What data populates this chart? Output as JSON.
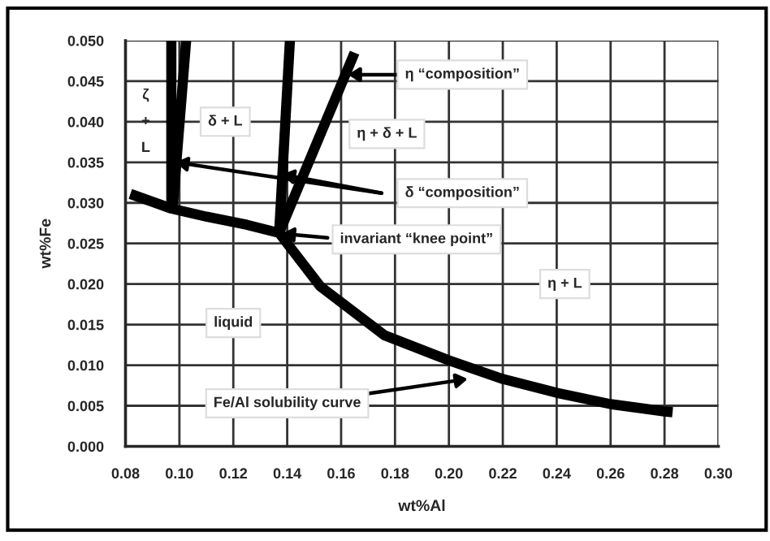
{
  "chart_data": {
    "type": "line",
    "xlabel": "wt%Al",
    "ylabel": "wt%Fe",
    "series": [
      {
        "color": "#000000",
        "x": [
          0.0818,
          0.097,
          0.11,
          0.125,
          0.137,
          0.1523,
          0.176,
          0.2,
          0.22,
          0.24,
          0.26,
          0.28,
          0.283
        ],
        "values": [
          0.0311,
          0.0293,
          0.0283,
          0.0273,
          0.0263,
          0.0197,
          0.0137,
          0.0106,
          0.0083,
          0.0066,
          0.0052,
          0.0043,
          0.0042
        ]
      },
      {
        "color": "#000000",
        "x": [
          0.097,
          0.097
        ],
        "values": [
          0.0293,
          0.05
        ]
      },
      {
        "color": "#000000",
        "x": [
          0.0975,
          0.1025
        ],
        "values": [
          0.0293,
          0.05
        ]
      },
      {
        "color": "#000000",
        "x": [
          0.137,
          0.141
        ],
        "values": [
          0.0263,
          0.05
        ]
      },
      {
        "color": "#000000",
        "x": [
          0.137,
          0.165
        ],
        "values": [
          0.0263,
          0.0485
        ]
      }
    ],
    "xlim": [
      0.08,
      0.3
    ],
    "ylim": [
      0.0,
      0.05
    ],
    "xticks": [
      {
        "value": 0.08,
        "label": "0.08"
      },
      {
        "value": 0.1,
        "label": "0.10"
      },
      {
        "value": 0.12,
        "label": "0.12"
      },
      {
        "value": 0.14,
        "label": "0.14"
      },
      {
        "value": 0.16,
        "label": "0.16"
      },
      {
        "value": 0.18,
        "label": "0.18"
      },
      {
        "value": 0.2,
        "label": "0.20"
      },
      {
        "value": 0.22,
        "label": "0.22"
      },
      {
        "value": 0.24,
        "label": "0.24"
      },
      {
        "value": 0.26,
        "label": "0.26"
      },
      {
        "value": 0.28,
        "label": "0.28"
      },
      {
        "value": 0.3,
        "label": "0.30"
      }
    ],
    "yticks": [
      {
        "value": 0.0,
        "label": "0.000"
      },
      {
        "value": 0.005,
        "label": "0.005"
      },
      {
        "value": 0.01,
        "label": "0.010"
      },
      {
        "value": 0.015,
        "label": "0.015"
      },
      {
        "value": 0.02,
        "label": "0.020"
      },
      {
        "value": 0.025,
        "label": "0.025"
      },
      {
        "value": 0.03,
        "label": "0.030"
      },
      {
        "value": 0.035,
        "label": "0.035"
      },
      {
        "value": 0.04,
        "label": "0.040"
      },
      {
        "value": 0.045,
        "label": "0.045"
      },
      {
        "value": 0.05,
        "label": "0.050"
      }
    ],
    "grid": true,
    "marker": "none",
    "line_style": "solid",
    "annotations": [
      "ζ\n+\nL",
      "δ + L",
      "η “composition”",
      "η + δ + L",
      "δ “composition”",
      "invariant “knee point”",
      "η + L",
      "liquid",
      "Fe/Al solubility curve"
    ]
  }
}
